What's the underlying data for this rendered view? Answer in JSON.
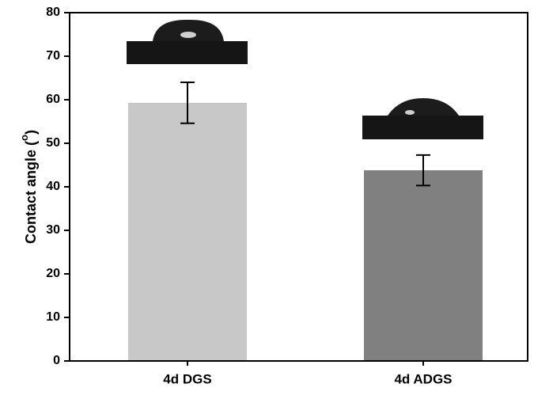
{
  "chart_data": {
    "type": "bar",
    "ylabel_parts": [
      "Contact angle (",
      "o",
      ")"
    ],
    "categories": [
      "4d DGS",
      "4d ADGS"
    ],
    "values": [
      59.3,
      43.8
    ],
    "errors": [
      4.7,
      3.5
    ],
    "colors": [
      "#c8c8c8",
      "#808080"
    ],
    "ylim": [
      0,
      80
    ],
    "yticks": [
      0,
      10,
      20,
      30,
      40,
      50,
      60,
      70,
      80
    ],
    "grid": false
  }
}
